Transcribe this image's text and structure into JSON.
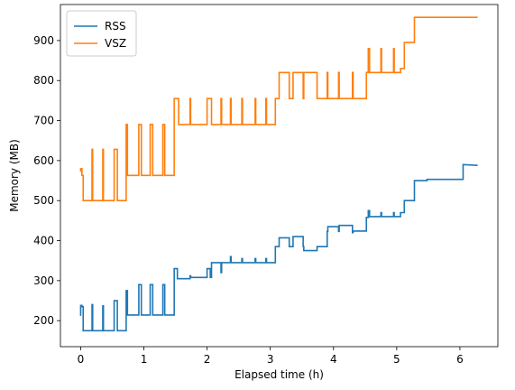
{
  "chart_data": {
    "type": "line",
    "xlabel": "Elapsed time (h)",
    "ylabel": "Memory (MB)",
    "xlim": [
      -0.32,
      6.6
    ],
    "ylim": [
      135,
      990
    ],
    "xticks": [
      0,
      1,
      2,
      3,
      4,
      5,
      6
    ],
    "yticks": [
      200,
      300,
      400,
      500,
      600,
      700,
      800,
      900
    ],
    "grid": false,
    "legend": {
      "placement": "top-left",
      "entries": [
        "RSS",
        "VSZ"
      ]
    },
    "series": [
      {
        "name": "RSS",
        "color": "#1f77b4",
        "x": [
          0,
          0,
          0.02,
          0.02,
          0.04,
          0.04,
          0.05,
          0.05,
          0.18,
          0.18,
          0.19,
          0.19,
          0.35,
          0.35,
          0.36,
          0.36,
          0.53,
          0.53,
          0.58,
          0.58,
          0.72,
          0.72,
          0.74,
          0.74,
          0.92,
          0.92,
          0.96,
          0.96,
          1.1,
          1.1,
          1.14,
          1.14,
          1.3,
          1.3,
          1.33,
          1.33,
          1.48,
          1.48,
          1.53,
          1.53,
          1.55,
          1.55,
          1.73,
          1.73,
          1.74,
          1.74,
          2,
          2,
          2.05,
          2.05,
          2.07,
          2.07,
          2.22,
          2.22,
          2.23,
          2.23,
          2.37,
          2.37,
          2.38,
          2.38,
          2.55,
          2.55,
          2.56,
          2.56,
          2.76,
          2.76,
          2.77,
          2.77,
          2.93,
          2.93,
          2.94,
          2.94,
          3.08,
          3.08,
          3.14,
          3.14,
          3.3,
          3.3,
          3.36,
          3.36,
          3.52,
          3.52,
          3.53,
          3.53,
          3.74,
          3.74,
          3.9,
          3.9,
          3.91,
          3.91,
          4.08,
          4.08,
          4.09,
          4.09,
          4.3,
          4.3,
          4.31,
          4.31,
          4.52,
          4.52,
          4.55,
          4.55,
          4.57,
          4.57,
          4.75,
          4.75,
          4.76,
          4.76,
          4.95,
          4.95,
          4.96,
          4.96,
          5.06,
          5.06,
          5.12,
          5.12,
          5.28,
          5.28,
          5.48,
          5.48,
          6.05,
          6.05,
          6.28
        ],
        "values": [
          212,
          238,
          238,
          235,
          235,
          175,
          175,
          175,
          175,
          240,
          240,
          175,
          175,
          237,
          237,
          175,
          175,
          250,
          250,
          175,
          175,
          275,
          275,
          214,
          214,
          290,
          290,
          214,
          214,
          290,
          290,
          214,
          214,
          290,
          290,
          214,
          214,
          330,
          330,
          305,
          305,
          305,
          305,
          312,
          312,
          308,
          308,
          330,
          330,
          308,
          308,
          345,
          345,
          320,
          320,
          345,
          345,
          360,
          360,
          345,
          345,
          355,
          355,
          345,
          345,
          355,
          355,
          345,
          345,
          355,
          355,
          345,
          345,
          385,
          385,
          407,
          407,
          385,
          385,
          410,
          410,
          385,
          385,
          375,
          375,
          385,
          385,
          423,
          423,
          435,
          435,
          423,
          423,
          438,
          438,
          420,
          420,
          424,
          424,
          458,
          458,
          475,
          475,
          460,
          460,
          470,
          470,
          460,
          460,
          470,
          470,
          460,
          460,
          470,
          470,
          500,
          500,
          550,
          550,
          553,
          553,
          590,
          588
        ]
      },
      {
        "name": "VSZ",
        "color": "#ff7f0e",
        "x": [
          0,
          0,
          0.02,
          0.02,
          0.04,
          0.04,
          0.18,
          0.18,
          0.19,
          0.19,
          0.35,
          0.35,
          0.36,
          0.36,
          0.53,
          0.53,
          0.58,
          0.58,
          0.72,
          0.72,
          0.74,
          0.74,
          0.92,
          0.92,
          0.96,
          0.96,
          1.1,
          1.1,
          1.14,
          1.14,
          1.3,
          1.3,
          1.33,
          1.33,
          1.48,
          1.48,
          1.55,
          1.55,
          1.73,
          1.73,
          1.74,
          1.74,
          2,
          2,
          2.07,
          2.07,
          2.22,
          2.22,
          2.23,
          2.23,
          2.37,
          2.37,
          2.38,
          2.38,
          2.55,
          2.55,
          2.56,
          2.56,
          2.76,
          2.76,
          2.77,
          2.77,
          2.93,
          2.93,
          2.94,
          2.94,
          3.08,
          3.08,
          3.14,
          3.14,
          3.3,
          3.3,
          3.36,
          3.36,
          3.52,
          3.52,
          3.53,
          3.53,
          3.74,
          3.74,
          3.9,
          3.9,
          3.91,
          3.91,
          4.08,
          4.08,
          4.09,
          4.09,
          4.3,
          4.3,
          4.31,
          4.31,
          4.52,
          4.52,
          4.55,
          4.55,
          4.57,
          4.57,
          4.75,
          4.75,
          4.76,
          4.76,
          4.95,
          4.95,
          4.96,
          4.96,
          5.06,
          5.06,
          5.12,
          5.12,
          5.28,
          5.28,
          6.28
        ],
        "values": [
          572,
          580,
          580,
          563,
          563,
          500,
          500,
          628,
          628,
          500,
          500,
          628,
          628,
          500,
          500,
          628,
          628,
          500,
          500,
          690,
          690,
          563,
          563,
          690,
          690,
          563,
          563,
          690,
          690,
          563,
          563,
          690,
          690,
          563,
          563,
          755,
          755,
          690,
          690,
          755,
          755,
          690,
          690,
          755,
          755,
          690,
          690,
          755,
          755,
          690,
          690,
          755,
          755,
          690,
          690,
          755,
          755,
          690,
          690,
          755,
          755,
          690,
          690,
          755,
          755,
          690,
          690,
          755,
          755,
          820,
          820,
          755,
          755,
          820,
          820,
          755,
          755,
          820,
          820,
          755,
          755,
          820,
          820,
          755,
          755,
          820,
          820,
          755,
          755,
          820,
          820,
          755,
          755,
          820,
          820,
          880,
          880,
          820,
          820,
          880,
          880,
          820,
          820,
          880,
          880,
          820,
          820,
          830,
          830,
          895,
          895,
          958,
          958
        ]
      }
    ]
  }
}
